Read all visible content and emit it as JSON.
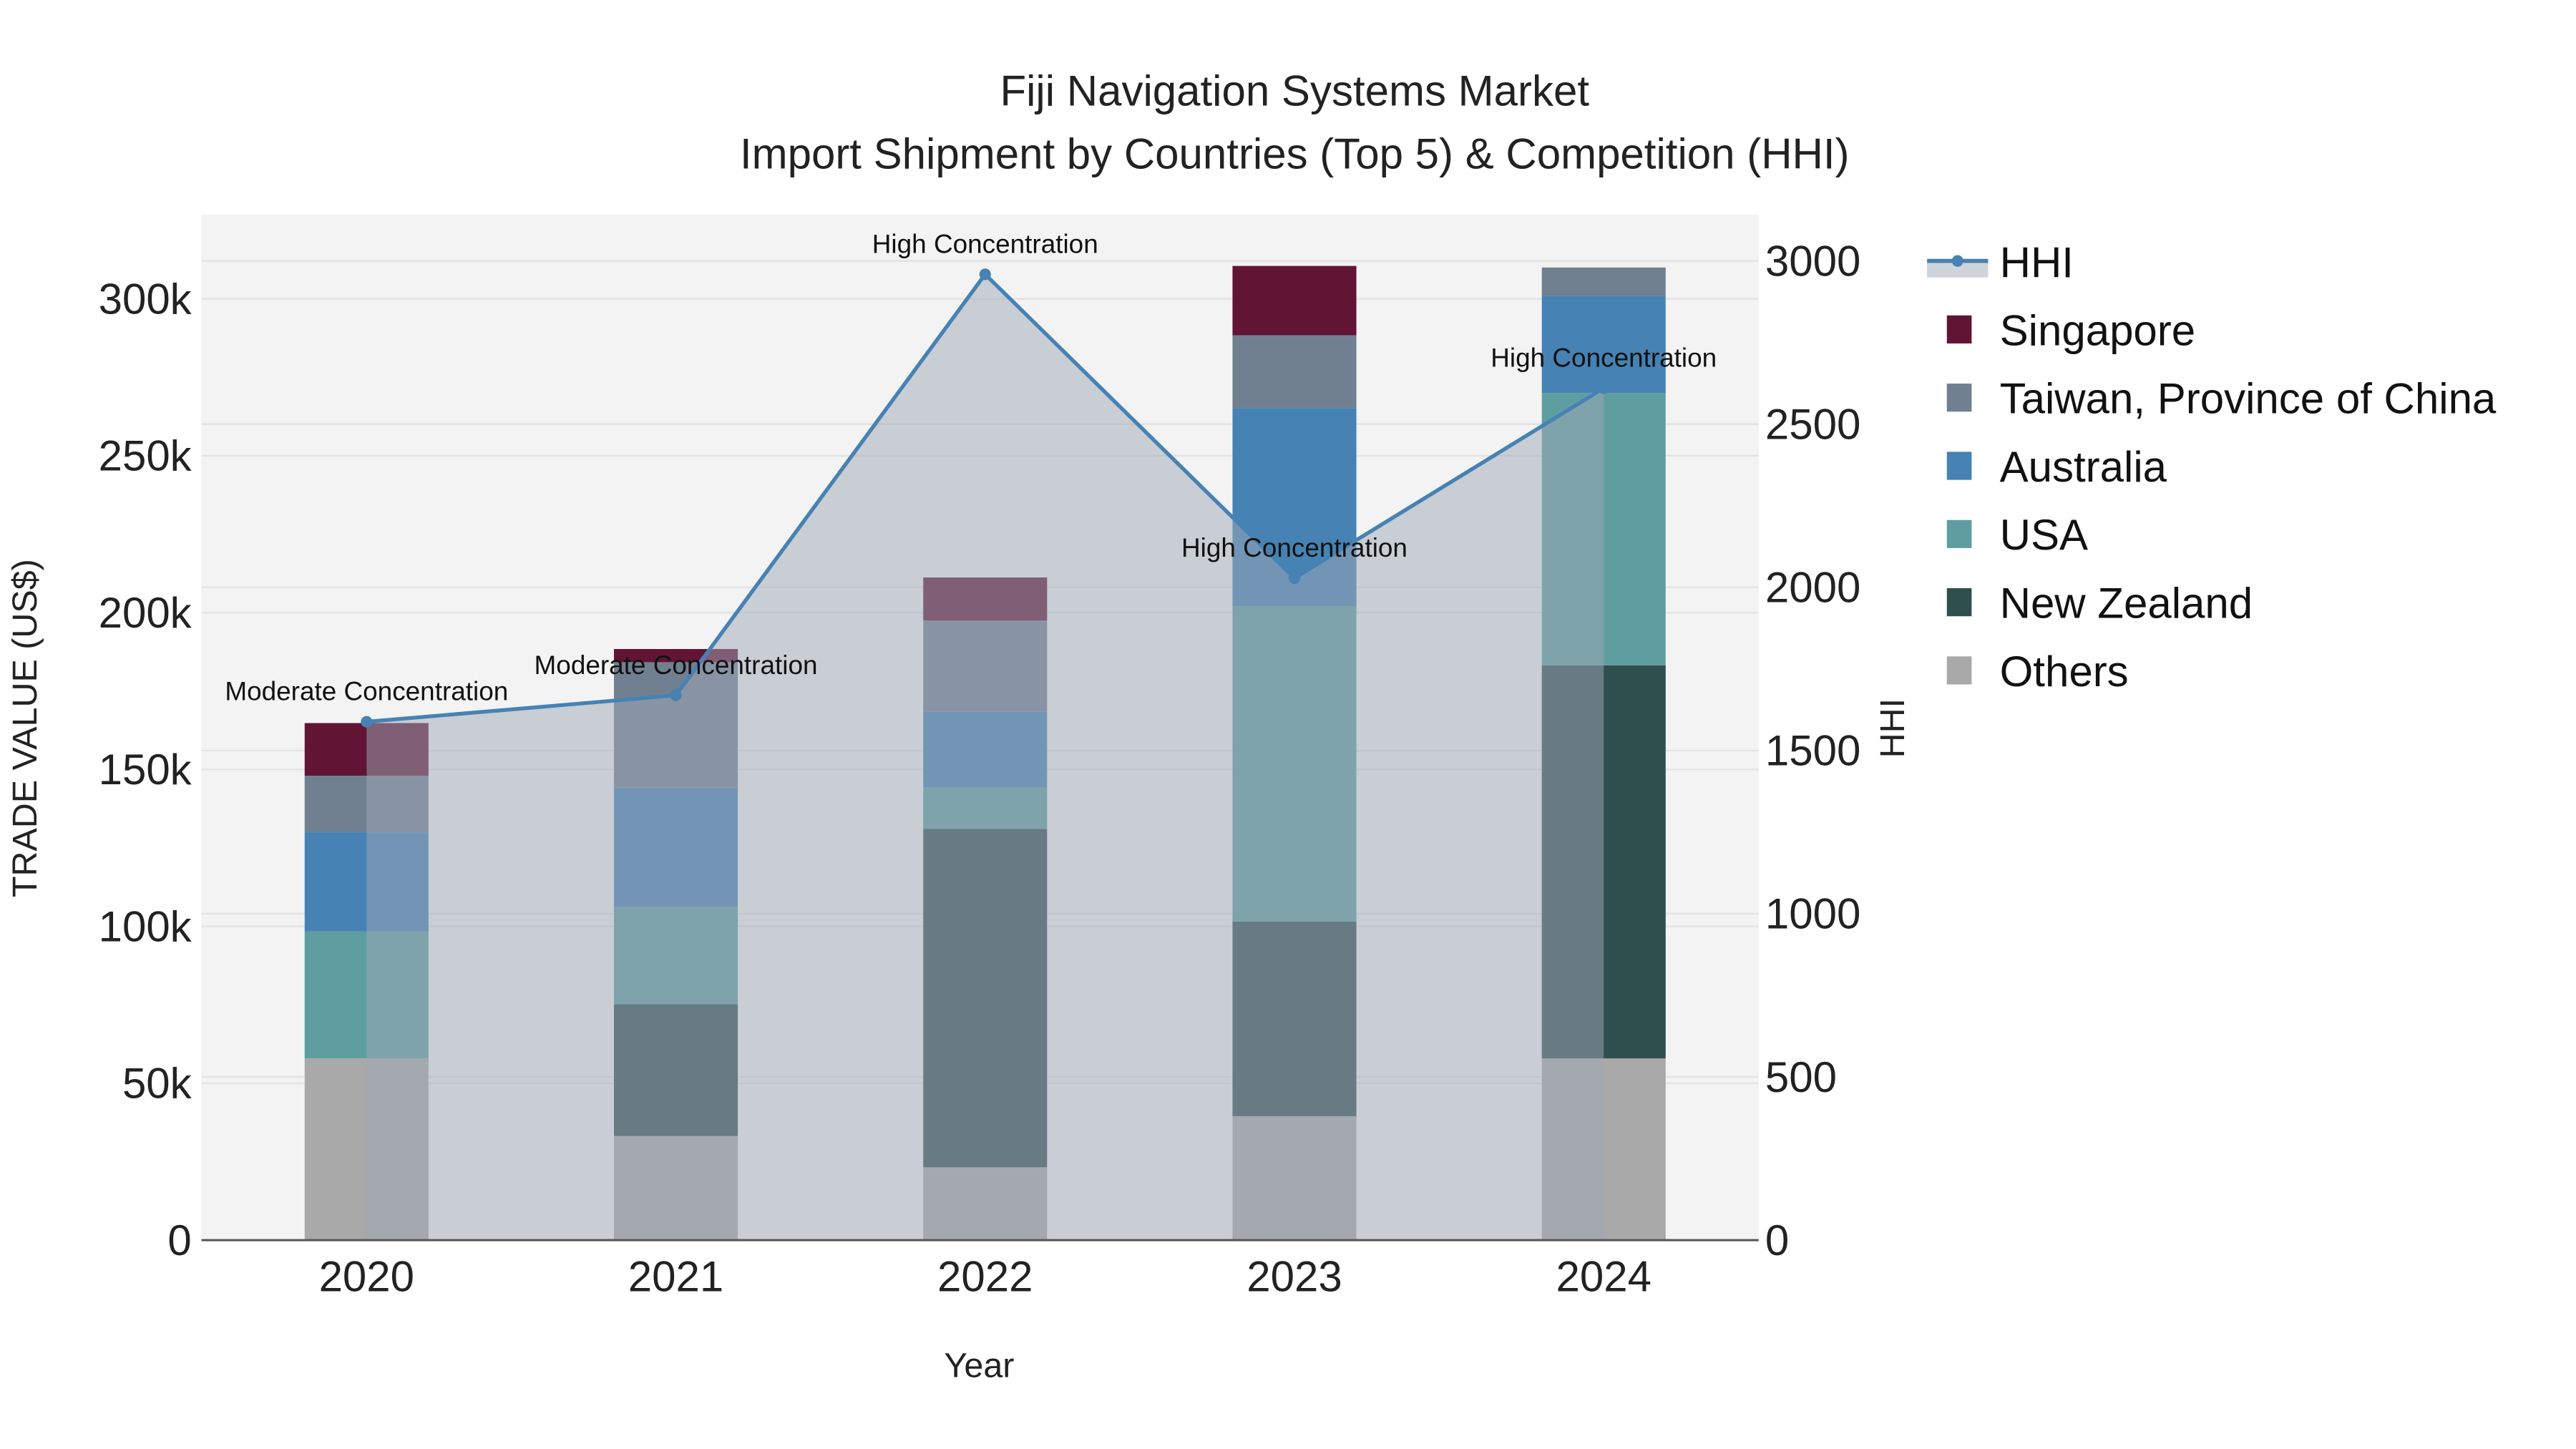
{
  "chart_data": {
    "type": "bar",
    "title": "Fiji Navigation Systems Market",
    "subtitle": "Import Shipment by Countries (Top 5) & Competition (HHI)",
    "xlabel": "Year",
    "ylabel": "TRADE VALUE (US$)",
    "y2label": "HHI",
    "categories": [
      "2020",
      "2021",
      "2022",
      "2023",
      "2024"
    ],
    "ylim": [
      0,
      326000
    ],
    "y2lim": [
      0,
      3130
    ],
    "yticks": [
      0,
      50000,
      100000,
      150000,
      200000,
      250000,
      300000
    ],
    "ytick_labels": [
      "0",
      "50k",
      "100k",
      "150k",
      "200k",
      "250k",
      "300k"
    ],
    "y2ticks": [
      0,
      500,
      1000,
      1500,
      2000,
      2500,
      3000
    ],
    "y2tick_labels": [
      "0",
      "500",
      "1000",
      "1500",
      "2000",
      "2500",
      "3000"
    ],
    "grid": true,
    "legend_position": "right",
    "stack_order": [
      "Others",
      "New Zealand",
      "USA",
      "Australia",
      "Taiwan, Province of China",
      "Singapore"
    ],
    "series": [
      {
        "name": "Singapore",
        "color": "#611434",
        "values": [
          16800,
          4200,
          13700,
          22100,
          0
        ]
      },
      {
        "name": "Taiwan, Province of China",
        "color": "#708090",
        "values": [
          18000,
          40000,
          29000,
          23200,
          9000
        ]
      },
      {
        "name": "Australia",
        "color": "#4682B4",
        "values": [
          31600,
          38000,
          24200,
          63200,
          31000
        ]
      },
      {
        "name": "USA",
        "color": "#5F9EA0",
        "values": [
          40500,
          31000,
          13200,
          100500,
          86800
        ]
      },
      {
        "name": "New Zealand",
        "color": "#2F4F4F",
        "values": [
          0,
          42000,
          107900,
          62000,
          125300
        ]
      },
      {
        "name": "Others",
        "color": "#A9A9A9",
        "values": [
          57900,
          33200,
          23200,
          39500,
          57900
        ]
      }
    ],
    "line": {
      "name": "HHI",
      "color": "#4682B4",
      "values": [
        1588,
        1669,
        2959,
        2028,
        2610
      ],
      "annotations": [
        "Moderate Concentration",
        "Moderate Concentration",
        "High Concentration",
        "High Concentration",
        "High Concentration"
      ]
    }
  }
}
